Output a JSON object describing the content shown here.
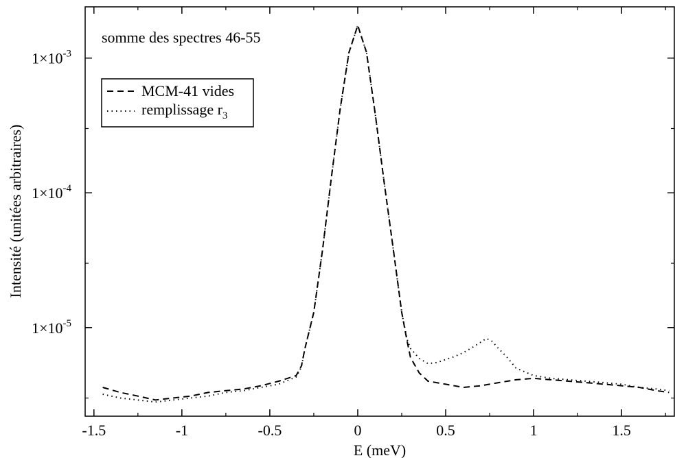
{
  "chart_data": {
    "type": "line",
    "title": "",
    "annotation": "somme des spectres 46-55",
    "xlabel": "E (meV)",
    "ylabel": "Intensité (unitées arbitraires)",
    "xlim": [
      -1.55,
      1.8
    ],
    "ylim": [
      2.2e-06,
      0.0024
    ],
    "yscale": "log",
    "grid": false,
    "legend_position": "top-left",
    "x_ticks": [
      -1.5,
      -1,
      -0.5,
      0,
      0.5,
      1,
      1.5
    ],
    "x_tick_labels": [
      "-1.5",
      "-1",
      "-0.5",
      "0",
      "0.5",
      "1",
      "1.5"
    ],
    "y_ticks": [
      1e-05,
      0.0001,
      0.001
    ],
    "y_tick_labels": [
      {
        "base": "1×10",
        "exp": "-5"
      },
      {
        "base": "1×10",
        "exp": "-4"
      },
      {
        "base": "1×10",
        "exp": "-3"
      }
    ],
    "series": [
      {
        "name": "MCM-41 vides",
        "style": "dashed",
        "color": "#000000",
        "x": [
          -1.45,
          -1.35,
          -1.25,
          -1.15,
          -1.05,
          -0.95,
          -0.85,
          -0.75,
          -0.65,
          -0.55,
          -0.45,
          -0.35,
          -0.32,
          -0.3,
          -0.25,
          -0.2,
          -0.15,
          -0.1,
          -0.05,
          0,
          0.05,
          0.1,
          0.15,
          0.2,
          0.25,
          0.28,
          0.3,
          0.35,
          0.4,
          0.5,
          0.6,
          0.7,
          0.8,
          0.9,
          1.0,
          1.1,
          1.2,
          1.3,
          1.4,
          1.5,
          1.6,
          1.7,
          1.77
        ],
        "y": [
          3.6e-06,
          3.3e-06,
          3.1e-06,
          2.9e-06,
          3e-06,
          3.1e-06,
          3.3e-06,
          3.4e-06,
          3.5e-06,
          3.7e-06,
          4e-06,
          4.4e-06,
          5.2e-06,
          7e-06,
          1.3e-05,
          3.8e-05,
          0.00013,
          0.00042,
          0.0011,
          0.00175,
          0.0011,
          0.00038,
          0.00012,
          4e-05,
          1.3e-05,
          8e-06,
          6e-06,
          4.6e-06,
          4e-06,
          3.8e-06,
          3.6e-06,
          3.7e-06,
          3.9e-06,
          4.1e-06,
          4.2e-06,
          4.1e-06,
          4e-06,
          3.9e-06,
          3.8e-06,
          3.7e-06,
          3.6e-06,
          3.4e-06,
          3.3e-06
        ]
      },
      {
        "name": "remplissage r",
        "name_sub": "3",
        "style": "dotted",
        "color": "#000000",
        "x": [
          -1.45,
          -1.35,
          -1.25,
          -1.15,
          -1.05,
          -0.95,
          -0.85,
          -0.75,
          -0.65,
          -0.55,
          -0.45,
          -0.35,
          -0.32,
          -0.3,
          -0.25,
          -0.2,
          -0.15,
          -0.1,
          -0.05,
          0,
          0.05,
          0.1,
          0.15,
          0.2,
          0.25,
          0.28,
          0.3,
          0.35,
          0.4,
          0.45,
          0.5,
          0.55,
          0.6,
          0.65,
          0.7,
          0.73,
          0.76,
          0.8,
          0.85,
          0.9,
          1.0,
          1.1,
          1.2,
          1.3,
          1.4,
          1.5,
          1.6,
          1.7,
          1.77
        ],
        "y": [
          3.2e-06,
          3e-06,
          2.9e-06,
          2.8e-06,
          2.9e-06,
          3e-06,
          3.1e-06,
          3.3e-06,
          3.4e-06,
          3.6e-06,
          3.8e-06,
          4.3e-06,
          5.1e-06,
          7e-06,
          1.3e-05,
          3.8e-05,
          0.00013,
          0.00042,
          0.0011,
          0.00175,
          0.0011,
          0.00038,
          0.00012,
          4e-05,
          1.3e-05,
          8.2e-06,
          7e-06,
          5.9e-06,
          5.4e-06,
          5.5e-06,
          5.8e-06,
          6.1e-06,
          6.5e-06,
          7.1e-06,
          7.8e-06,
          8.3e-06,
          8e-06,
          7e-06,
          6e-06,
          5e-06,
          4.4e-06,
          4.2e-06,
          4.1e-06,
          4e-06,
          3.9e-06,
          3.8e-06,
          3.6e-06,
          3.5e-06,
          3.4e-06
        ]
      }
    ]
  }
}
